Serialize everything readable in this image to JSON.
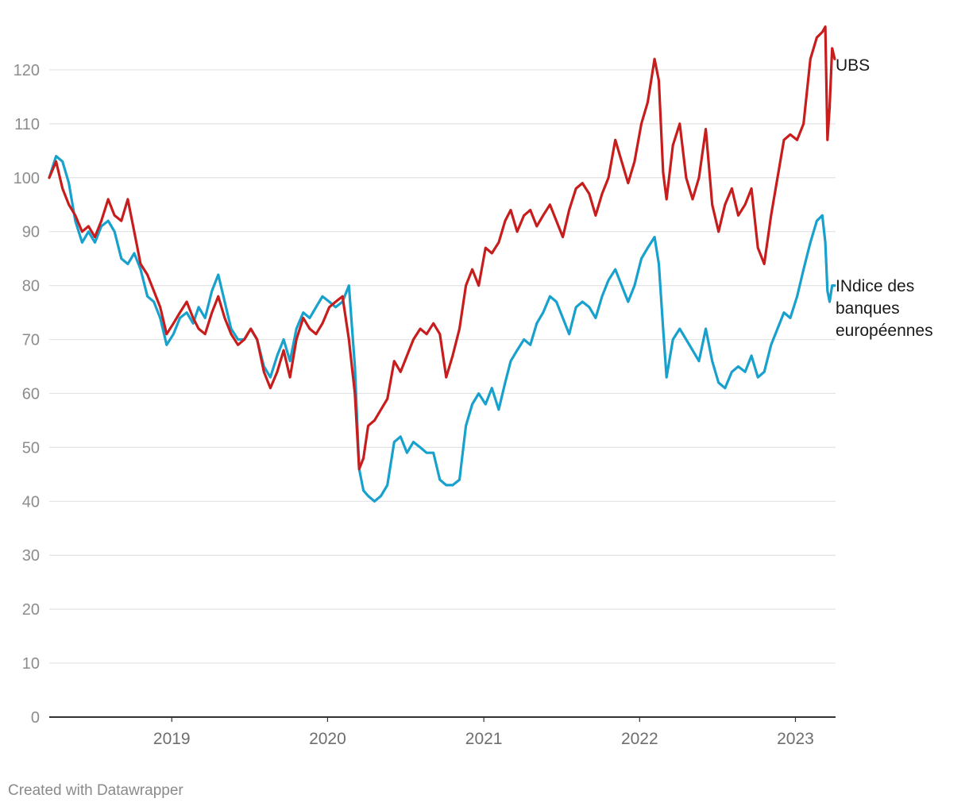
{
  "chart_data": {
    "type": "line",
    "title": "",
    "xlabel": "",
    "ylabel": "",
    "ylim": [
      0,
      130
    ],
    "xlim": [
      "2018-03-20",
      "2023-04-05"
    ],
    "y_ticks": [
      0,
      10,
      20,
      30,
      40,
      50,
      60,
      70,
      80,
      90,
      100,
      110,
      120
    ],
    "y_tick_labels": [
      "0",
      "10",
      "20",
      "30",
      "40",
      "50",
      "60",
      "70",
      "80",
      "90",
      "100",
      "110",
      "120"
    ],
    "x_ticks": [
      "2019-01-01",
      "2020-01-01",
      "2021-01-01",
      "2022-01-01",
      "2023-01-01"
    ],
    "x_tick_labels": [
      "2019",
      "2020",
      "2021",
      "2022",
      "2023"
    ],
    "grid": "horizontal",
    "legend": "direct labels at right end of lines",
    "series": [
      {
        "name": "UBS",
        "label_lines": [
          "UBS"
        ],
        "color": "#c71e1d",
        "points": [
          [
            "2018-03-20",
            100
          ],
          [
            "2018-04-05",
            103
          ],
          [
            "2018-04-20",
            98
          ],
          [
            "2018-05-05",
            95
          ],
          [
            "2018-05-20",
            93
          ],
          [
            "2018-06-05",
            90
          ],
          [
            "2018-06-20",
            91
          ],
          [
            "2018-07-05",
            89
          ],
          [
            "2018-07-20",
            92
          ],
          [
            "2018-08-05",
            96
          ],
          [
            "2018-08-20",
            93
          ],
          [
            "2018-09-05",
            92
          ],
          [
            "2018-09-20",
            96
          ],
          [
            "2018-10-05",
            90
          ],
          [
            "2018-10-20",
            84
          ],
          [
            "2018-11-05",
            82
          ],
          [
            "2018-11-20",
            79
          ],
          [
            "2018-12-05",
            76
          ],
          [
            "2018-12-20",
            71
          ],
          [
            "2019-01-05",
            73
          ],
          [
            "2019-01-20",
            75
          ],
          [
            "2019-02-05",
            77
          ],
          [
            "2019-02-20",
            74
          ],
          [
            "2019-03-05",
            72
          ],
          [
            "2019-03-20",
            71
          ],
          [
            "2019-04-05",
            75
          ],
          [
            "2019-04-20",
            78
          ],
          [
            "2019-05-05",
            74
          ],
          [
            "2019-05-20",
            71
          ],
          [
            "2019-06-05",
            69
          ],
          [
            "2019-06-20",
            70
          ],
          [
            "2019-07-05",
            72
          ],
          [
            "2019-07-20",
            70
          ],
          [
            "2019-08-05",
            64
          ],
          [
            "2019-08-20",
            61
          ],
          [
            "2019-09-05",
            64
          ],
          [
            "2019-09-20",
            68
          ],
          [
            "2019-10-05",
            63
          ],
          [
            "2019-10-20",
            70
          ],
          [
            "2019-11-05",
            74
          ],
          [
            "2019-11-20",
            72
          ],
          [
            "2019-12-05",
            71
          ],
          [
            "2019-12-20",
            73
          ],
          [
            "2020-01-05",
            76
          ],
          [
            "2020-01-20",
            77
          ],
          [
            "2020-02-05",
            78
          ],
          [
            "2020-02-20",
            70
          ],
          [
            "2020-03-05",
            60
          ],
          [
            "2020-03-15",
            46
          ],
          [
            "2020-03-25",
            48
          ],
          [
            "2020-04-05",
            54
          ],
          [
            "2020-04-20",
            55
          ],
          [
            "2020-05-05",
            57
          ],
          [
            "2020-05-20",
            59
          ],
          [
            "2020-06-05",
            66
          ],
          [
            "2020-06-20",
            64
          ],
          [
            "2020-07-05",
            67
          ],
          [
            "2020-07-20",
            70
          ],
          [
            "2020-08-05",
            72
          ],
          [
            "2020-08-20",
            71
          ],
          [
            "2020-09-05",
            73
          ],
          [
            "2020-09-20",
            71
          ],
          [
            "2020-10-05",
            63
          ],
          [
            "2020-10-20",
            67
          ],
          [
            "2020-11-05",
            72
          ],
          [
            "2020-11-20",
            80
          ],
          [
            "2020-12-05",
            83
          ],
          [
            "2020-12-20",
            80
          ],
          [
            "2021-01-05",
            87
          ],
          [
            "2021-01-20",
            86
          ],
          [
            "2021-02-05",
            88
          ],
          [
            "2021-02-20",
            92
          ],
          [
            "2021-03-05",
            94
          ],
          [
            "2021-03-20",
            90
          ],
          [
            "2021-04-05",
            93
          ],
          [
            "2021-04-20",
            94
          ],
          [
            "2021-05-05",
            91
          ],
          [
            "2021-05-20",
            93
          ],
          [
            "2021-06-05",
            95
          ],
          [
            "2021-06-20",
            92
          ],
          [
            "2021-07-05",
            89
          ],
          [
            "2021-07-20",
            94
          ],
          [
            "2021-08-05",
            98
          ],
          [
            "2021-08-20",
            99
          ],
          [
            "2021-09-05",
            97
          ],
          [
            "2021-09-20",
            93
          ],
          [
            "2021-10-05",
            97
          ],
          [
            "2021-10-20",
            100
          ],
          [
            "2021-11-05",
            107
          ],
          [
            "2021-11-20",
            103
          ],
          [
            "2021-12-05",
            99
          ],
          [
            "2021-12-20",
            103
          ],
          [
            "2022-01-05",
            110
          ],
          [
            "2022-01-20",
            114
          ],
          [
            "2022-02-05",
            122
          ],
          [
            "2022-02-15",
            118
          ],
          [
            "2022-02-25",
            101
          ],
          [
            "2022-03-05",
            96
          ],
          [
            "2022-03-20",
            106
          ],
          [
            "2022-04-05",
            110
          ],
          [
            "2022-04-20",
            100
          ],
          [
            "2022-05-05",
            96
          ],
          [
            "2022-05-20",
            100
          ],
          [
            "2022-06-05",
            109
          ],
          [
            "2022-06-20",
            95
          ],
          [
            "2022-07-05",
            90
          ],
          [
            "2022-07-20",
            95
          ],
          [
            "2022-08-05",
            98
          ],
          [
            "2022-08-20",
            93
          ],
          [
            "2022-09-05",
            95
          ],
          [
            "2022-09-20",
            98
          ],
          [
            "2022-10-05",
            87
          ],
          [
            "2022-10-20",
            84
          ],
          [
            "2022-11-05",
            93
          ],
          [
            "2022-11-20",
            100
          ],
          [
            "2022-12-05",
            107
          ],
          [
            "2022-12-20",
            108
          ],
          [
            "2023-01-05",
            107
          ],
          [
            "2023-01-20",
            110
          ],
          [
            "2023-02-05",
            122
          ],
          [
            "2023-02-20",
            126
          ],
          [
            "2023-03-05",
            127
          ],
          [
            "2023-03-12",
            128
          ],
          [
            "2023-03-17",
            107
          ],
          [
            "2023-03-22",
            113
          ],
          [
            "2023-03-28",
            124
          ],
          [
            "2023-04-03",
            122
          ]
        ]
      },
      {
        "name": "INdice des banques européennes",
        "label_lines": [
          "INdice des",
          "banques",
          "européennes"
        ],
        "color": "#18a1cd",
        "points": [
          [
            "2018-03-20",
            100
          ],
          [
            "2018-04-05",
            104
          ],
          [
            "2018-04-20",
            103
          ],
          [
            "2018-05-05",
            99
          ],
          [
            "2018-05-20",
            92
          ],
          [
            "2018-06-05",
            88
          ],
          [
            "2018-06-20",
            90
          ],
          [
            "2018-07-05",
            88
          ],
          [
            "2018-07-20",
            91
          ],
          [
            "2018-08-05",
            92
          ],
          [
            "2018-08-20",
            90
          ],
          [
            "2018-09-05",
            85
          ],
          [
            "2018-09-20",
            84
          ],
          [
            "2018-10-05",
            86
          ],
          [
            "2018-10-20",
            83
          ],
          [
            "2018-11-05",
            78
          ],
          [
            "2018-11-20",
            77
          ],
          [
            "2018-12-05",
            74
          ],
          [
            "2018-12-20",
            69
          ],
          [
            "2019-01-05",
            71
          ],
          [
            "2019-01-20",
            74
          ],
          [
            "2019-02-05",
            75
          ],
          [
            "2019-02-20",
            73
          ],
          [
            "2019-03-05",
            76
          ],
          [
            "2019-03-20",
            74
          ],
          [
            "2019-04-05",
            79
          ],
          [
            "2019-04-20",
            82
          ],
          [
            "2019-05-05",
            77
          ],
          [
            "2019-05-20",
            72
          ],
          [
            "2019-06-05",
            70
          ],
          [
            "2019-06-20",
            70
          ],
          [
            "2019-07-05",
            72
          ],
          [
            "2019-07-20",
            70
          ],
          [
            "2019-08-05",
            65
          ],
          [
            "2019-08-20",
            63
          ],
          [
            "2019-09-05",
            67
          ],
          [
            "2019-09-20",
            70
          ],
          [
            "2019-10-05",
            66
          ],
          [
            "2019-10-20",
            72
          ],
          [
            "2019-11-05",
            75
          ],
          [
            "2019-11-20",
            74
          ],
          [
            "2019-12-05",
            76
          ],
          [
            "2019-12-20",
            78
          ],
          [
            "2020-01-05",
            77
          ],
          [
            "2020-01-20",
            76
          ],
          [
            "2020-02-05",
            77
          ],
          [
            "2020-02-20",
            80
          ],
          [
            "2020-03-05",
            65
          ],
          [
            "2020-03-15",
            46
          ],
          [
            "2020-03-25",
            42
          ],
          [
            "2020-04-05",
            41
          ],
          [
            "2020-04-20",
            40
          ],
          [
            "2020-05-05",
            41
          ],
          [
            "2020-05-20",
            43
          ],
          [
            "2020-06-05",
            51
          ],
          [
            "2020-06-20",
            52
          ],
          [
            "2020-07-05",
            49
          ],
          [
            "2020-07-20",
            51
          ],
          [
            "2020-08-05",
            50
          ],
          [
            "2020-08-20",
            49
          ],
          [
            "2020-09-05",
            49
          ],
          [
            "2020-09-20",
            44
          ],
          [
            "2020-10-05",
            43
          ],
          [
            "2020-10-20",
            43
          ],
          [
            "2020-11-05",
            44
          ],
          [
            "2020-11-20",
            54
          ],
          [
            "2020-12-05",
            58
          ],
          [
            "2020-12-20",
            60
          ],
          [
            "2021-01-05",
            58
          ],
          [
            "2021-01-20",
            61
          ],
          [
            "2021-02-05",
            57
          ],
          [
            "2021-02-20",
            62
          ],
          [
            "2021-03-05",
            66
          ],
          [
            "2021-03-20",
            68
          ],
          [
            "2021-04-05",
            70
          ],
          [
            "2021-04-20",
            69
          ],
          [
            "2021-05-05",
            73
          ],
          [
            "2021-05-20",
            75
          ],
          [
            "2021-06-05",
            78
          ],
          [
            "2021-06-20",
            77
          ],
          [
            "2021-07-05",
            74
          ],
          [
            "2021-07-20",
            71
          ],
          [
            "2021-08-05",
            76
          ],
          [
            "2021-08-20",
            77
          ],
          [
            "2021-09-05",
            76
          ],
          [
            "2021-09-20",
            74
          ],
          [
            "2021-10-05",
            78
          ],
          [
            "2021-10-20",
            81
          ],
          [
            "2021-11-05",
            83
          ],
          [
            "2021-11-20",
            80
          ],
          [
            "2021-12-05",
            77
          ],
          [
            "2021-12-20",
            80
          ],
          [
            "2022-01-05",
            85
          ],
          [
            "2022-01-20",
            87
          ],
          [
            "2022-02-05",
            89
          ],
          [
            "2022-02-15",
            84
          ],
          [
            "2022-02-25",
            72
          ],
          [
            "2022-03-05",
            63
          ],
          [
            "2022-03-20",
            70
          ],
          [
            "2022-04-05",
            72
          ],
          [
            "2022-04-20",
            70
          ],
          [
            "2022-05-05",
            68
          ],
          [
            "2022-05-20",
            66
          ],
          [
            "2022-06-05",
            72
          ],
          [
            "2022-06-20",
            66
          ],
          [
            "2022-07-05",
            62
          ],
          [
            "2022-07-20",
            61
          ],
          [
            "2022-08-05",
            64
          ],
          [
            "2022-08-20",
            65
          ],
          [
            "2022-09-05",
            64
          ],
          [
            "2022-09-20",
            67
          ],
          [
            "2022-10-05",
            63
          ],
          [
            "2022-10-20",
            64
          ],
          [
            "2022-11-05",
            69
          ],
          [
            "2022-11-20",
            72
          ],
          [
            "2022-12-05",
            75
          ],
          [
            "2022-12-20",
            74
          ],
          [
            "2023-01-05",
            78
          ],
          [
            "2023-01-20",
            83
          ],
          [
            "2023-02-05",
            88
          ],
          [
            "2023-02-20",
            92
          ],
          [
            "2023-03-05",
            93
          ],
          [
            "2023-03-12",
            88
          ],
          [
            "2023-03-17",
            79
          ],
          [
            "2023-03-22",
            77
          ],
          [
            "2023-03-28",
            80
          ],
          [
            "2023-04-03",
            80
          ]
        ]
      }
    ]
  },
  "footer": {
    "credit": "Created with Datawrapper"
  }
}
